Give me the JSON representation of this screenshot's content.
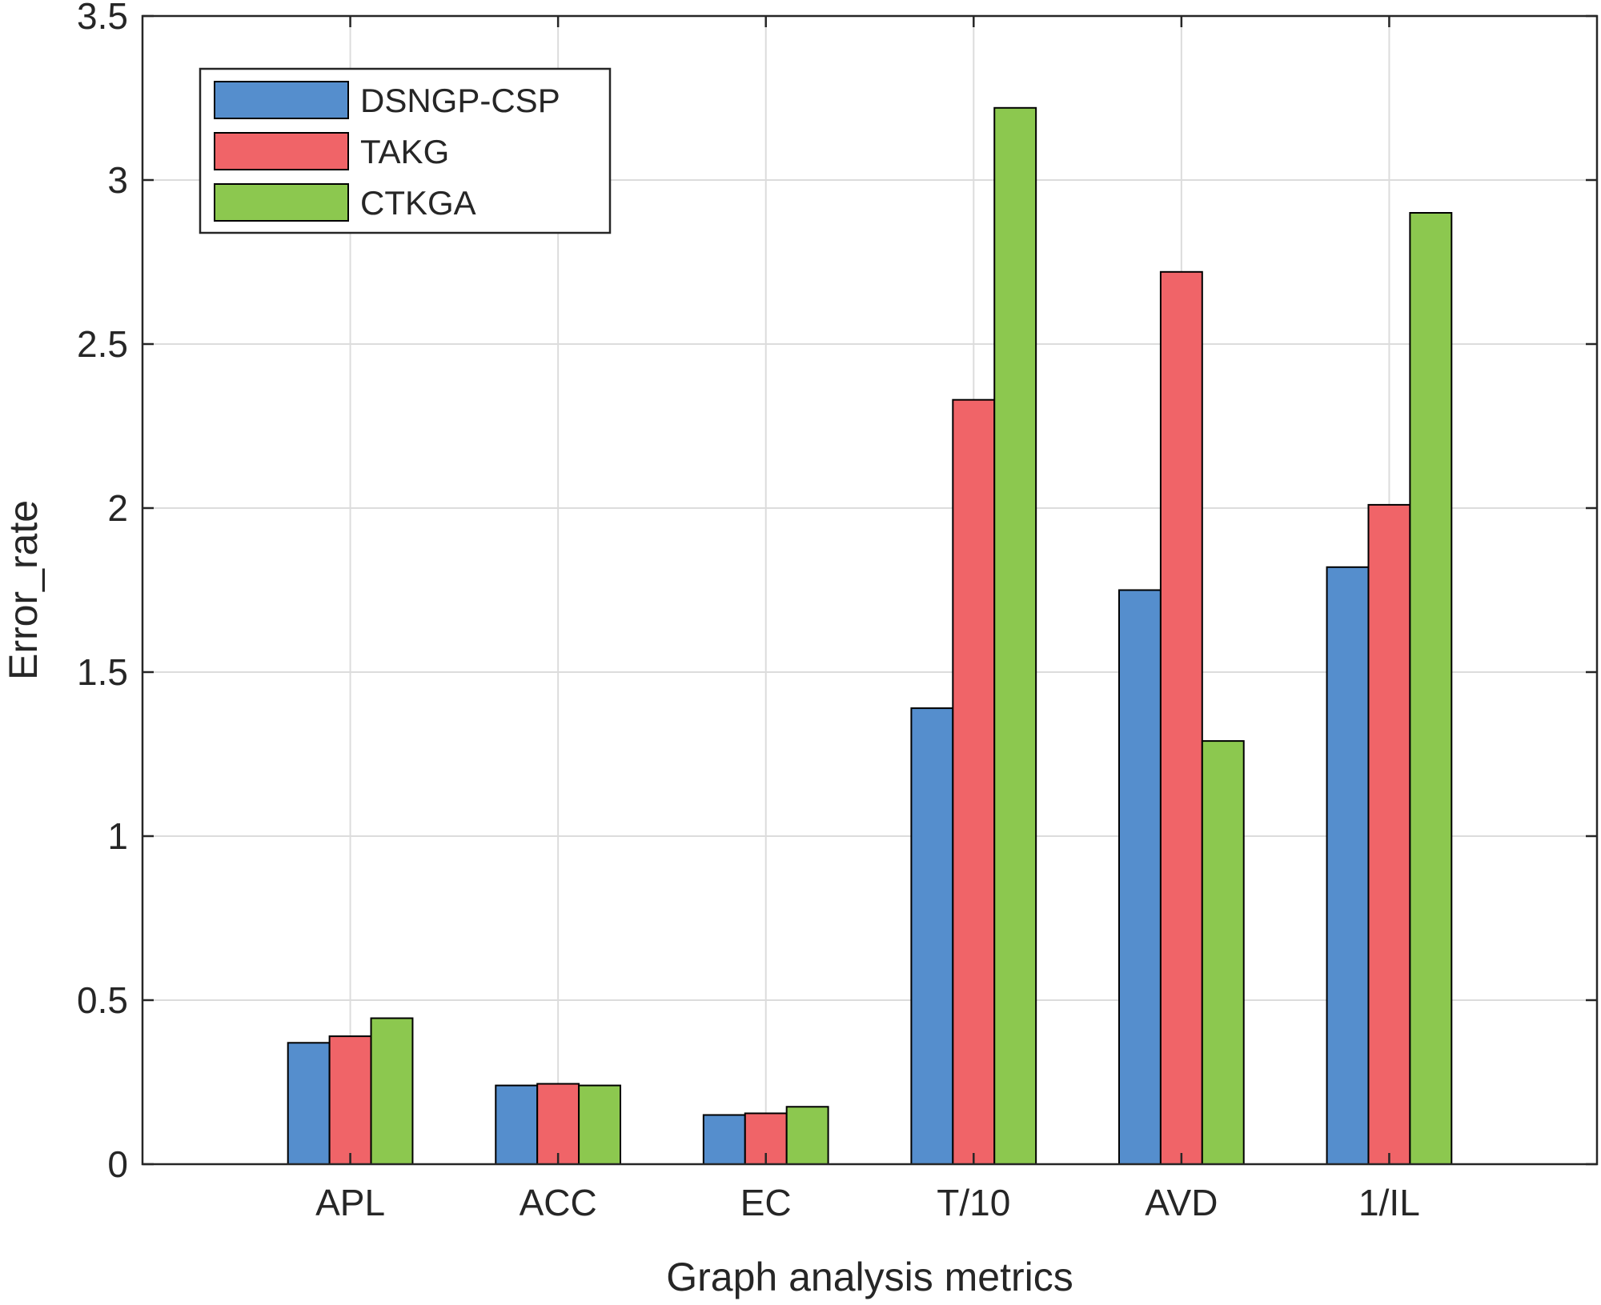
{
  "chart_data": {
    "type": "bar",
    "title": "",
    "xlabel": "Graph analysis metrics",
    "ylabel": "Error_rate",
    "categories": [
      "APL",
      "ACC",
      "EC",
      "T/10",
      "AVD",
      "1/IL"
    ],
    "series": [
      {
        "name": "DSNGP-CSP",
        "color": "#558ecd",
        "values": [
          0.37,
          0.24,
          0.15,
          1.39,
          1.75,
          1.82
        ]
      },
      {
        "name": "TAKG",
        "color": "#f06468",
        "values": [
          0.39,
          0.245,
          0.155,
          2.33,
          2.72,
          2.01
        ]
      },
      {
        "name": "CTKGA",
        "color": "#8cc84f",
        "values": [
          0.445,
          0.24,
          0.175,
          3.22,
          1.29,
          2.9
        ]
      }
    ],
    "ylim": [
      0,
      3.5
    ],
    "xlim": [
      0,
      7
    ],
    "yticks": [
      0,
      0.5,
      1,
      1.5,
      2,
      2.5,
      3,
      3.5
    ],
    "ytick_labels": [
      "0",
      "0.5",
      "1",
      "1.5",
      "2",
      "2.5",
      "3",
      "3.5"
    ],
    "grid": true,
    "legend_position": "top-left"
  }
}
